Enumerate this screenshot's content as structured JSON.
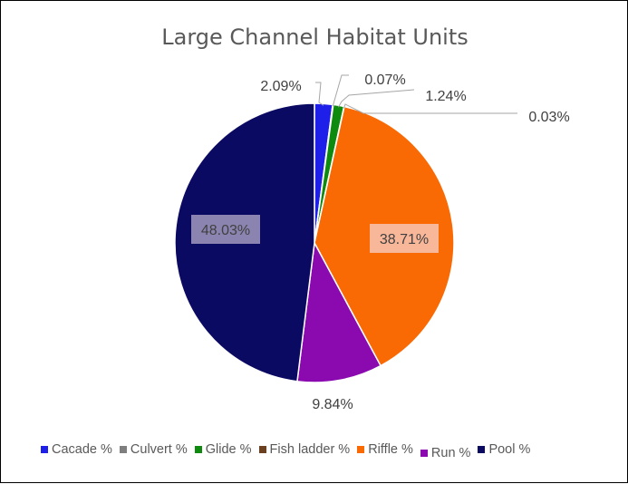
{
  "chart_data": {
    "type": "pie",
    "title": "Large Channel Habitat Units",
    "slices": [
      {
        "name": "Cacade %",
        "value": 2.09,
        "label": "2.09%",
        "color": "#1F1FEA"
      },
      {
        "name": "Culvert %",
        "value": 0.07,
        "label": "0.07%",
        "color": "#7F7F7F"
      },
      {
        "name": "Glide %",
        "value": 1.24,
        "label": "1.24%",
        "color": "#0E8A0E"
      },
      {
        "name": "Fish ladder %",
        "value": 0.03,
        "label": "0.03%",
        "color": "#6B4020"
      },
      {
        "name": "Riffle %",
        "value": 38.71,
        "label": "38.71%",
        "color": "#F96A05"
      },
      {
        "name": "Run %",
        "value": 9.84,
        "label": "9.84%",
        "color": "#8A0AB0"
      },
      {
        "name": "Pool %",
        "value": 48.03,
        "label": "48.03%",
        "color": "#0B0A62"
      }
    ],
    "legend_position": "bottom"
  }
}
